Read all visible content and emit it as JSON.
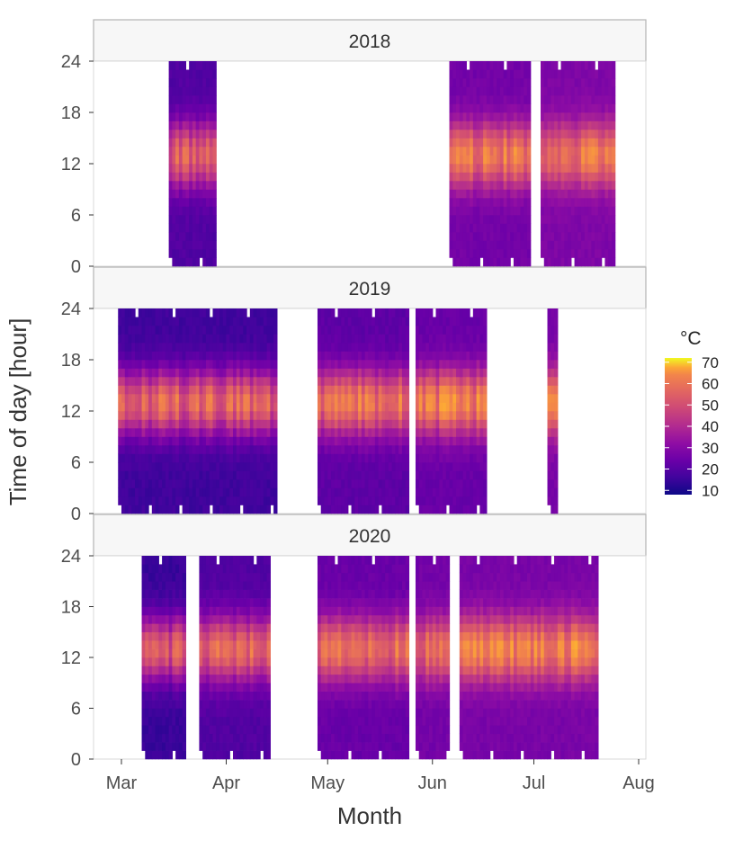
{
  "chart_data": {
    "type": "heatmap",
    "xlabel": "Month",
    "ylabel": "Time of day [hour]",
    "x_ticks": [
      "Mar",
      "Apr",
      "May",
      "Jun",
      "Jul",
      "Aug"
    ],
    "x_tick_dates": [
      "03-01",
      "04-01",
      "05-01",
      "06-01",
      "07-01",
      "08-01"
    ],
    "y_ticks": [
      0,
      6,
      12,
      18,
      24
    ],
    "ylim": [
      0,
      24
    ],
    "legend": {
      "title": "°C",
      "ticks": [
        10,
        20,
        30,
        40,
        50,
        60,
        70
      ],
      "range": [
        8,
        72
      ],
      "colormap": "plasma",
      "position": "right"
    },
    "panels": [
      {
        "label": "2018",
        "segments": [
          {
            "start": "03-15",
            "end": "03-29",
            "peak": 50,
            "base": 18
          },
          {
            "start": "06-06",
            "end": "06-30",
            "peak": 55,
            "base": 24
          },
          {
            "start": "07-03",
            "end": "07-25",
            "peak": 55,
            "base": 26
          }
        ]
      },
      {
        "label": "2019",
        "segments": [
          {
            "start": "02-28",
            "end": "04-16",
            "peak": 50,
            "base": 15
          },
          {
            "start": "04-28",
            "end": "05-25",
            "peak": 54,
            "base": 20
          },
          {
            "start": "05-27",
            "end": "06-17",
            "peak": 57,
            "base": 22
          },
          {
            "start": "07-05",
            "end": "07-08",
            "peak": 55,
            "base": 25
          }
        ]
      },
      {
        "label": "2020",
        "segments": [
          {
            "start": "03-07",
            "end": "03-20",
            "peak": 48,
            "base": 14
          },
          {
            "start": "03-24",
            "end": "04-14",
            "peak": 50,
            "base": 18
          },
          {
            "start": "04-28",
            "end": "05-25",
            "peak": 53,
            "base": 22
          },
          {
            "start": "05-27",
            "end": "06-06",
            "peak": 52,
            "base": 24
          },
          {
            "start": "06-09",
            "end": "07-20",
            "peak": 58,
            "base": 25
          }
        ]
      }
    ]
  }
}
